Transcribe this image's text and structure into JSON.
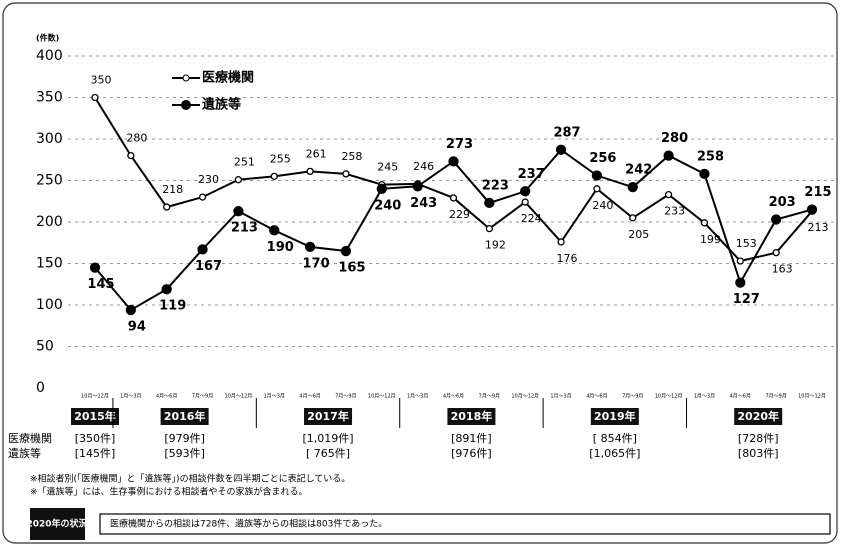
{
  "chart_data": {
    "type": "line",
    "y_unit": "(件数)",
    "categories": [
      "10月～12月",
      "1月～3月",
      "4月～6月",
      "7月～9月",
      "10月～12月",
      "1月～3月",
      "4月～6月",
      "7月～9月",
      "10月～12月",
      "1月～3月",
      "4月～6月",
      "7月～9月",
      "10月～12月",
      "1月～3月",
      "4月～6月",
      "7月～9月",
      "10月～12月",
      "1月～3月",
      "4月～6月",
      "7月～9月",
      "10月～12月"
    ],
    "series": [
      {
        "name": "医療機関",
        "color": "#000000",
        "marker": "open",
        "values": [
          350,
          280,
          218,
          230,
          251,
          255,
          261,
          258,
          245,
          246,
          229,
          192,
          224,
          176,
          240,
          205,
          233,
          199,
          153,
          163,
          213
        ]
      },
      {
        "name": "遺族等",
        "color": "#000000",
        "marker": "filled",
        "values": [
          145,
          94,
          119,
          167,
          213,
          190,
          170,
          165,
          240,
          243,
          273,
          223,
          237,
          287,
          256,
          242,
          280,
          258,
          127,
          203,
          215
        ]
      }
    ],
    "ylim": [
      0,
      400
    ],
    "yticks": [
      0,
      50,
      100,
      150,
      200,
      250,
      300,
      350,
      400
    ],
    "grid": true,
    "years": [
      {
        "label": "2015年",
        "medical": "[350件]",
        "family": "[145件]"
      },
      {
        "label": "2016年",
        "medical": "[979件]",
        "family": "[593件]"
      },
      {
        "label": "2017年",
        "medical": "[1,019件]",
        "family": "[ 765件]"
      },
      {
        "label": "2018年",
        "medical": "[891件]",
        "family": "[976件]"
      },
      {
        "label": "2019年",
        "medical": "[ 854件]",
        "family": "[1,065件]"
      },
      {
        "label": "2020年",
        "medical": "[728件]",
        "family": "[803件]"
      }
    ],
    "notes": [
      "※相談者別(「医療機関」と「遺族等」)の相談件数を四半期ごとに表記している。",
      "※「遺族等」には、生存事例における相談者やその家族が含まれる。"
    ],
    "summary": {
      "label": "2020年の状況",
      "text": "医療機関からの相談は728件、遺族等からの相談は803件であった。"
    }
  }
}
